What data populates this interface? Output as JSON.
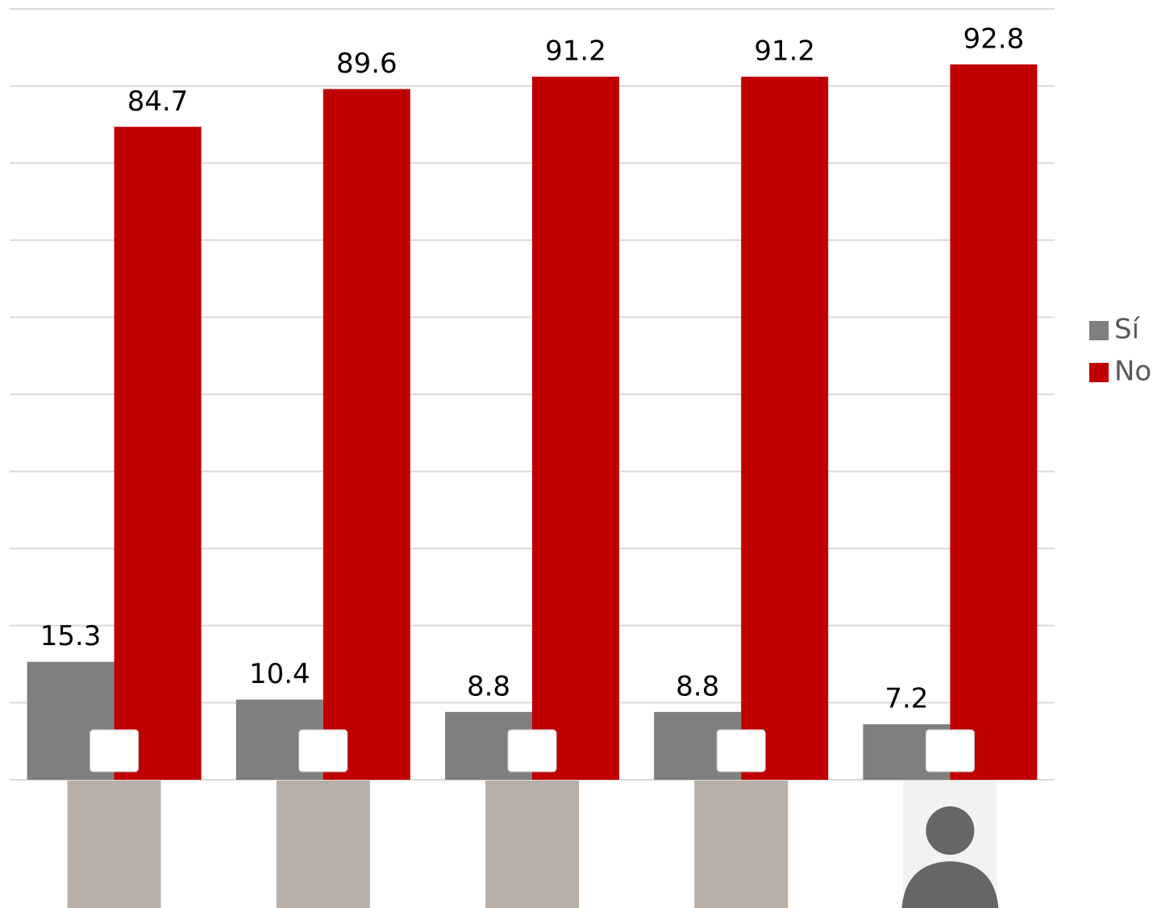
{
  "chart_data": {
    "type": "bar",
    "categories": [
      null,
      null,
      null,
      null,
      null
    ],
    "series": [
      {
        "name": "Sí",
        "color": "#7f7f7f",
        "values": [
          15.3,
          10.4,
          8.8,
          8.8,
          7.2
        ]
      },
      {
        "name": "No",
        "color": "#c00000",
        "values": [
          84.7,
          89.6,
          91.2,
          91.2,
          92.8
        ]
      }
    ],
    "ylim": [
      0,
      100
    ],
    "yticks": [
      0,
      10,
      20,
      30,
      40,
      50,
      60,
      70,
      80,
      90,
      100
    ],
    "grid": true,
    "legend": "right"
  }
}
